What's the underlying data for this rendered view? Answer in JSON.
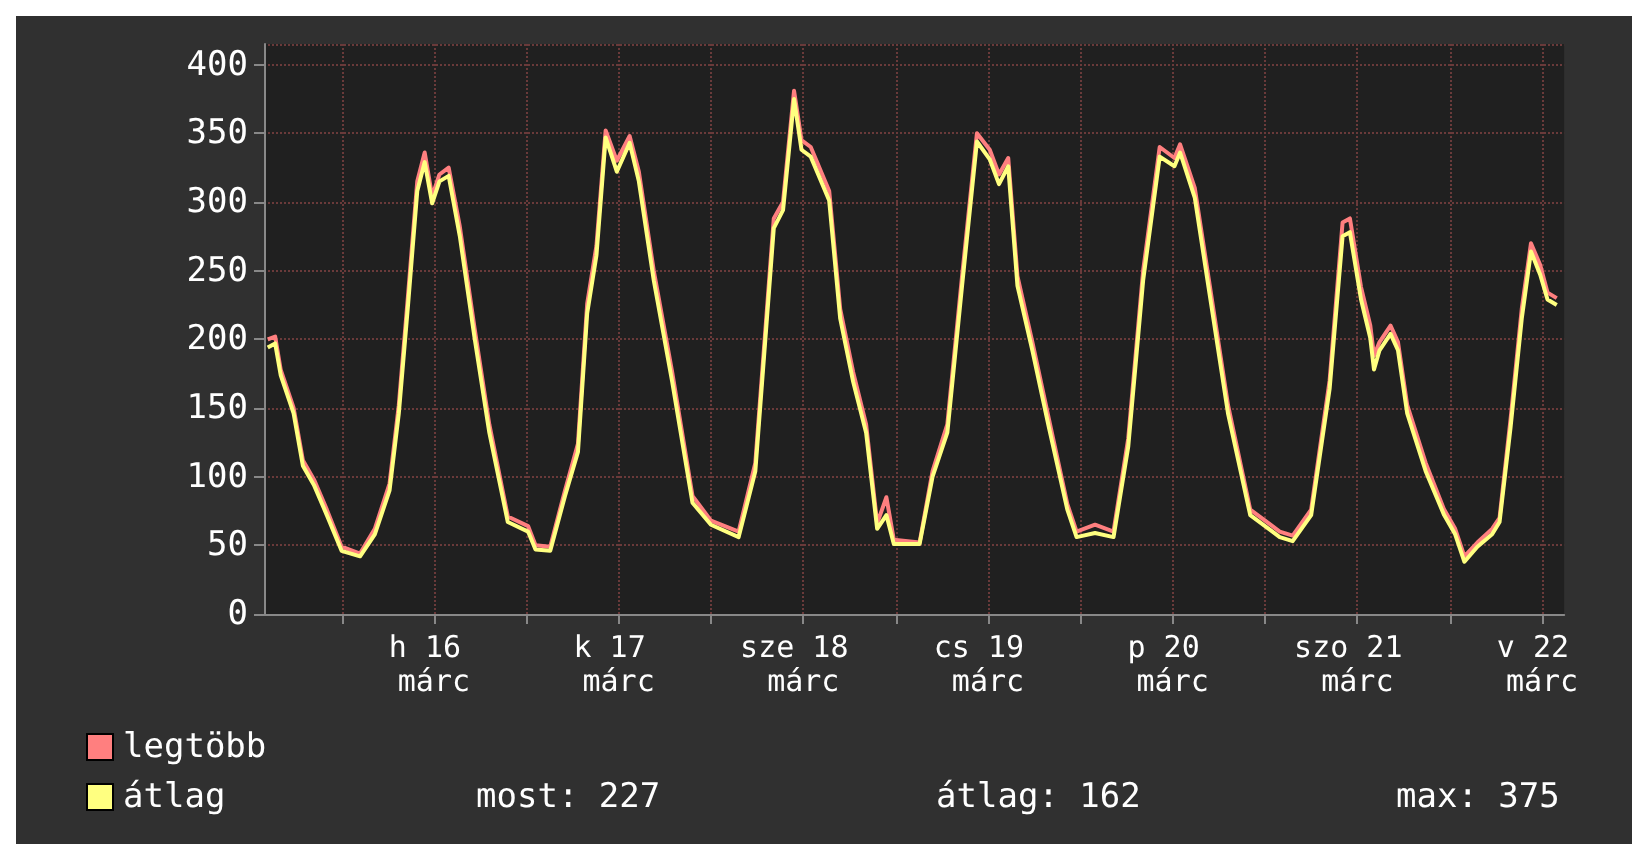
{
  "chart_data": {
    "type": "line",
    "xlim": [
      "--03-15T13:55",
      "--03-22T14:53"
    ],
    "ylim": [
      0,
      415
    ],
    "xticks": [
      {
        "value": "--03-16T00:00",
        "label": null
      },
      {
        "value": "--03-16T12:00",
        "label": "h 16 márc"
      },
      {
        "value": "--03-17T00:00",
        "label": null
      },
      {
        "value": "--03-17T12:00",
        "label": "k 17 márc"
      },
      {
        "value": "--03-18T00:00",
        "label": null
      },
      {
        "value": "--03-18T12:00",
        "label": "sze 18 márc"
      },
      {
        "value": "--03-19T00:00",
        "label": null
      },
      {
        "value": "--03-19T12:00",
        "label": "cs 19 márc"
      },
      {
        "value": "--03-20T00:00",
        "label": null
      },
      {
        "value": "--03-20T12:00",
        "label": "p 20 márc"
      },
      {
        "value": "--03-21T00:00",
        "label": null
      },
      {
        "value": "--03-21T12:00",
        "label": "szo 21 márc"
      },
      {
        "value": "--03-22T00:00",
        "label": null
      },
      {
        "value": "--03-22T12:00",
        "label": "v 22 márc"
      }
    ],
    "yticks": [
      0,
      50,
      100,
      150,
      200,
      250,
      300,
      350,
      400
    ],
    "x": [
      "--03-15T14:24",
      "--03-15T15:22",
      "--03-15T16:05",
      "--03-15T17:46",
      "--03-15T18:58",
      "--03-15T20:24",
      "--03-15T22:05",
      "--03-16T00:00",
      "--03-16T02:24",
      "--03-16T04:19",
      "--03-16T06:14",
      "--03-16T07:26",
      "--03-16T08:38",
      "--03-16T09:50",
      "--03-16T10:48",
      "--03-16T11:46",
      "--03-16T12:43",
      "--03-16T13:55",
      "--03-16T15:22",
      "--03-16T17:17",
      "--03-16T19:12",
      "--03-16T21:36",
      "--03-17T00:14",
      "--03-17T01:12",
      "--03-17T03:07",
      "--03-17T05:02",
      "--03-17T06:43",
      "--03-17T07:55",
      "--03-17T09:07",
      "--03-17T10:19",
      "--03-17T11:46",
      "--03-17T13:26",
      "--03-17T14:38",
      "--03-17T16:34",
      "--03-17T18:58",
      "--03-17T21:36",
      "--03-18T00:00",
      "--03-18T03:36",
      "--03-18T05:46",
      "--03-18T08:10",
      "--03-18T09:22",
      "--03-18T10:48",
      "--03-18T11:46",
      "--03-18T12:58",
      "--03-18T15:22",
      "--03-18T16:48",
      "--03-18T18:29",
      "--03-18T20:10",
      "--03-18T21:36",
      "--03-18T22:48",
      "--03-18T23:46",
      "--03-19T03:07",
      "--03-19T04:48",
      "--03-19T06:43",
      "--03-19T08:38",
      "--03-19T10:34",
      "--03-19T12:14",
      "--03-19T13:26",
      "--03-19T14:38",
      "--03-19T15:50",
      "--03-19T17:46",
      "--03-19T19:55",
      "--03-19T22:19",
      "--03-19T23:31",
      "--03-20T01:55",
      "--03-20T04:19",
      "--03-20T06:14",
      "--03-20T08:10",
      "--03-20T10:19",
      "--03-20T12:14",
      "--03-20T12:58",
      "--03-20T14:53",
      "--03-20T16:48",
      "--03-20T19:12",
      "--03-20T22:05",
      "--03-21T01:55",
      "--03-21T03:36",
      "--03-21T06:00",
      "--03-21T08:24",
      "--03-21T10:05",
      "--03-21T11:02",
      "--03-21T12:29",
      "--03-21T13:41",
      "--03-21T14:10",
      "--03-21T14:53",
      "--03-21T16:19",
      "--03-21T17:17",
      "--03-21T18:29",
      "--03-21T20:53",
      "--03-21T23:17",
      "--03-22T00:43",
      "--03-22T01:55",
      "--03-22T03:36",
      "--03-22T05:31",
      "--03-22T06:29",
      "--03-22T07:55",
      "--03-22T09:22",
      "--03-22T10:34",
      "--03-22T11:46",
      "--03-22T12:43",
      "--03-22T13:55"
    ],
    "series": [
      {
        "name": "legtöbb",
        "color": "#ff7f7f",
        "values": [
          200,
          202,
          178,
          150,
          112,
          98,
          76,
          49,
          44,
          62,
          95,
          152,
          232,
          315,
          336,
          304,
          320,
          325,
          282,
          208,
          138,
          71,
          64,
          50,
          49,
          90,
          124,
          226,
          268,
          352,
          330,
          348,
          322,
          250,
          176,
          86,
          68,
          60,
          110,
          288,
          300,
          381,
          345,
          340,
          308,
          222,
          176,
          138,
          66,
          85,
          54,
          52,
          104,
          138,
          246,
          350,
          338,
          320,
          332,
          246,
          198,
          142,
          80,
          60,
          65,
          60,
          128,
          250,
          340,
          332,
          342,
          310,
          240,
          152,
          76,
          60,
          57,
          76,
          170,
          285,
          288,
          238,
          210,
          188,
          198,
          210,
          198,
          152,
          110,
          76,
          62,
          42,
          52,
          62,
          70,
          142,
          222,
          270,
          254,
          234,
          230
        ]
      },
      {
        "name": "átlag",
        "color": "#ffff80",
        "values": [
          194,
          197,
          174,
          146,
          108,
          94,
          72,
          46,
          42,
          58,
          90,
          146,
          225,
          308,
          329,
          299,
          315,
          319,
          275,
          201,
          132,
          67,
          60,
          47,
          46,
          86,
          118,
          219,
          261,
          347,
          322,
          343,
          315,
          243,
          169,
          81,
          65,
          56,
          104,
          281,
          294,
          375,
          338,
          333,
          301,
          215,
          169,
          132,
          62,
          72,
          51,
          51,
          100,
          132,
          239,
          344,
          331,
          313,
          326,
          239,
          192,
          136,
          76,
          56,
          59,
          56,
          122,
          243,
          333,
          326,
          336,
          303,
          233,
          146,
          72,
          56,
          53,
          72,
          164,
          275,
          278,
          229,
          201,
          178,
          192,
          204,
          192,
          146,
          104,
          72,
          58,
          38,
          49,
          58,
          67,
          136,
          215,
          264,
          247,
          229,
          225
        ]
      }
    ],
    "grid": true,
    "legend": "bottom left",
    "annotations": [
      "most: 227",
      "átlag: 162",
      "max: 375"
    ]
  }
}
